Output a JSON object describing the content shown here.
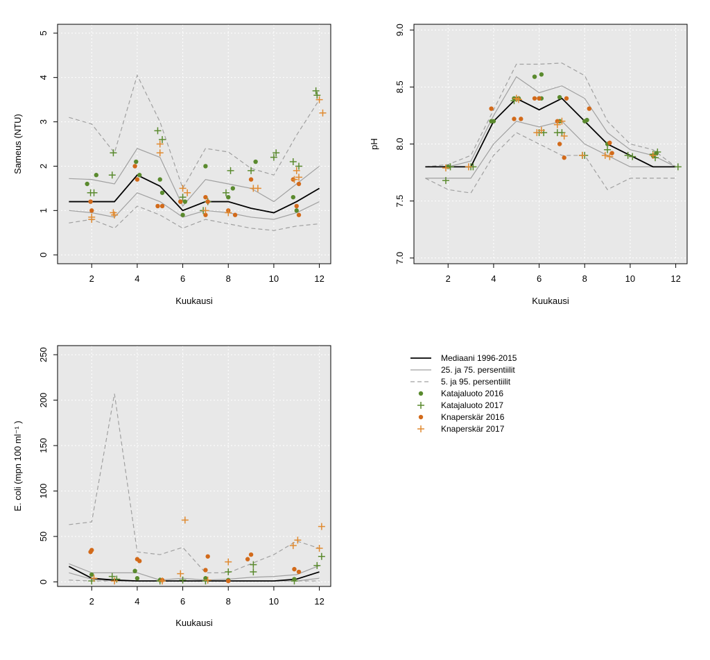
{
  "colors": {
    "panel_bg": "#e8e8e8",
    "grid": "#ffffff",
    "median": "#000000",
    "quartiles": "#a0a0a0",
    "percentiles_5_95": "#a0a0a0",
    "katajaluoto": "#5a8a2e",
    "knaperskar": "#d26a1a",
    "knaperskar_2017": "#e08a30"
  },
  "legend": {
    "items": [
      {
        "label": "Mediaani 1996-2015",
        "kind": "line",
        "style": "median"
      },
      {
        "label": "25. ja 75. persentiilit",
        "kind": "line",
        "style": "quartiles"
      },
      {
        "label": "5. ja 95. persentiilit",
        "kind": "line",
        "style": "percentiles"
      },
      {
        "label": "Katajaluoto 2016",
        "kind": "dot",
        "color": "#5a8a2e"
      },
      {
        "label": "Katajaluoto 2017",
        "kind": "plus",
        "color": "#5a8a2e"
      },
      {
        "label": "Knaperskär 2016",
        "kind": "dot",
        "color": "#d26a1a"
      },
      {
        "label": "Knaperskär 2017",
        "kind": "plus",
        "color": "#e08a30"
      }
    ]
  },
  "chart_data": [
    {
      "type": "line",
      "xlabel": "Kuukausi",
      "ylabel": "Sameus (NTU)",
      "xlim": [
        0.5,
        12.5
      ],
      "ylim": [
        -0.2,
        5.2
      ],
      "xticks": [
        2,
        4,
        6,
        8,
        10,
        12
      ],
      "yticks": [
        0,
        1,
        2,
        3,
        4,
        5
      ],
      "ytick_labels": [
        "0",
        "1",
        "2",
        "3",
        "4",
        "5"
      ],
      "grid": true,
      "x": [
        1,
        2,
        3,
        4,
        5,
        6,
        7,
        8,
        9,
        10,
        11,
        12
      ],
      "median": [
        1.2,
        1.2,
        1.2,
        1.8,
        1.55,
        1.0,
        1.2,
        1.2,
        1.05,
        0.95,
        1.2,
        1.5
      ],
      "p25": [
        1.0,
        0.95,
        0.85,
        1.4,
        1.2,
        0.85,
        1.0,
        0.95,
        0.85,
        0.8,
        0.95,
        1.2
      ],
      "p75": [
        1.72,
        1.7,
        1.6,
        2.4,
        2.2,
        1.1,
        1.7,
        1.6,
        1.5,
        1.2,
        1.6,
        2.0
      ],
      "p5": [
        0.72,
        0.8,
        0.6,
        1.1,
        0.9,
        0.6,
        0.8,
        0.7,
        0.6,
        0.55,
        0.65,
        0.7
      ],
      "p95": [
        3.1,
        2.95,
        2.3,
        4.05,
        3.0,
        1.5,
        2.4,
        2.32,
        1.95,
        1.8,
        2.7,
        3.5
      ],
      "points": {
        "katajaluoto_2016": [
          [
            1.8,
            1.6
          ],
          [
            2.2,
            1.8
          ],
          [
            3.95,
            2.1
          ],
          [
            4.1,
            1.8
          ],
          [
            5.0,
            1.7
          ],
          [
            5.1,
            1.4
          ],
          [
            5.9,
            1.2
          ],
          [
            6.0,
            0.9
          ],
          [
            6.1,
            1.2
          ],
          [
            7.0,
            2.0
          ],
          [
            8.0,
            1.3
          ],
          [
            8.2,
            1.5
          ],
          [
            9.2,
            2.1
          ],
          [
            10.85,
            1.3
          ],
          [
            11.0,
            1.0
          ]
        ],
        "katajaluoto_2017": [
          [
            1.95,
            1.4
          ],
          [
            2.1,
            1.4
          ],
          [
            2.9,
            1.8
          ],
          [
            2.95,
            2.3
          ],
          [
            4.9,
            2.8
          ],
          [
            5.1,
            2.6
          ],
          [
            6.0,
            1.3
          ],
          [
            6.9,
            1.0
          ],
          [
            7.1,
            1.2
          ],
          [
            7.9,
            1.4
          ],
          [
            8.1,
            1.9
          ],
          [
            9.0,
            1.9
          ],
          [
            10.0,
            2.2
          ],
          [
            10.1,
            2.3
          ],
          [
            10.85,
            2.1
          ],
          [
            11.1,
            2.0
          ],
          [
            11.85,
            3.7
          ],
          [
            11.9,
            3.6
          ]
        ],
        "knaperskar_2016": [
          [
            1.95,
            1.2
          ],
          [
            2.0,
            1.0
          ],
          [
            3.9,
            2.0
          ],
          [
            4.0,
            1.7
          ],
          [
            4.9,
            1.1
          ],
          [
            5.1,
            1.1
          ],
          [
            5.9,
            1.2
          ],
          [
            7.0,
            1.3
          ],
          [
            7.0,
            0.9
          ],
          [
            7.1,
            1.2
          ],
          [
            8.0,
            1.0
          ],
          [
            8.3,
            0.9
          ],
          [
            9.0,
            1.7
          ],
          [
            10.85,
            1.7
          ],
          [
            11.0,
            1.1
          ],
          [
            11.1,
            0.9
          ],
          [
            11.1,
            1.6
          ]
        ],
        "knaperskar_2017": [
          [
            2.0,
            0.8
          ],
          [
            2.0,
            0.85
          ],
          [
            2.95,
            0.95
          ],
          [
            3.0,
            0.9
          ],
          [
            5.0,
            2.5
          ],
          [
            5.0,
            2.3
          ],
          [
            6.0,
            1.5
          ],
          [
            6.2,
            1.4
          ],
          [
            7.0,
            1.0
          ],
          [
            8.0,
            0.95
          ],
          [
            9.1,
            1.5
          ],
          [
            9.3,
            1.5
          ],
          [
            10.9,
            1.7
          ],
          [
            11.0,
            1.9
          ],
          [
            11.1,
            1.75
          ],
          [
            12.0,
            3.5
          ],
          [
            12.15,
            3.2
          ]
        ]
      }
    },
    {
      "type": "line",
      "xlabel": "Kuukausi",
      "ylabel": "pH",
      "xlim": [
        0.5,
        12.5
      ],
      "ylim": [
        6.95,
        9.05
      ],
      "xticks": [
        2,
        4,
        6,
        8,
        10,
        12
      ],
      "yticks": [
        7.0,
        7.5,
        8.0,
        8.5,
        9.0
      ],
      "ytick_labels": [
        "7.0",
        "7.5",
        "8.0",
        "8.5",
        "9.0"
      ],
      "grid": true,
      "x": [
        1,
        2,
        3,
        4,
        5,
        6,
        7,
        8,
        9,
        10,
        11,
        12
      ],
      "median": [
        7.8,
        7.8,
        7.8,
        8.2,
        8.4,
        8.3,
        8.4,
        8.2,
        8.0,
        7.9,
        7.8,
        7.8
      ],
      "p25": [
        7.7,
        7.7,
        7.7,
        8.0,
        8.2,
        8.15,
        8.2,
        8.0,
        7.9,
        7.8,
        7.8,
        7.8
      ],
      "p75": [
        7.8,
        7.8,
        7.85,
        8.25,
        8.59,
        8.45,
        8.51,
        8.4,
        8.1,
        7.95,
        7.9,
        7.8
      ],
      "p5": [
        7.7,
        7.6,
        7.57,
        7.9,
        8.1,
        8.0,
        7.9,
        7.9,
        7.6,
        7.7,
        7.7,
        7.7
      ],
      "p95": [
        7.8,
        7.82,
        7.9,
        8.3,
        8.7,
        8.7,
        8.71,
        8.6,
        8.2,
        8.0,
        7.95,
        7.8
      ],
      "points": {
        "katajaluoto_2016": [
          [
            2.0,
            7.8
          ],
          [
            3.9,
            8.2
          ],
          [
            4.0,
            8.2
          ],
          [
            4.9,
            8.4
          ],
          [
            5.1,
            8.4
          ],
          [
            5.8,
            8.59
          ],
          [
            6.0,
            8.4
          ],
          [
            6.1,
            8.61
          ],
          [
            6.1,
            8.4
          ],
          [
            6.9,
            8.41
          ],
          [
            6.9,
            8.2
          ],
          [
            8.0,
            8.2
          ],
          [
            8.1,
            8.21
          ],
          [
            9.0,
            8.0
          ],
          [
            11.0,
            7.9
          ],
          [
            11.15,
            7.92
          ]
        ],
        "katajaluoto_2017": [
          [
            1.9,
            7.68
          ],
          [
            2.1,
            7.8
          ],
          [
            3.0,
            7.8
          ],
          [
            3.1,
            7.8
          ],
          [
            4.9,
            8.38
          ],
          [
            5.0,
            8.4
          ],
          [
            6.0,
            8.1
          ],
          [
            6.2,
            8.1
          ],
          [
            6.8,
            8.1
          ],
          [
            7.0,
            8.1
          ],
          [
            7.9,
            7.9
          ],
          [
            8.0,
            7.9
          ],
          [
            9.0,
            7.95
          ],
          [
            9.9,
            7.9
          ],
          [
            10.1,
            7.89
          ],
          [
            11.0,
            7.91
          ],
          [
            11.1,
            7.88
          ],
          [
            11.2,
            7.93
          ],
          [
            12.1,
            7.8
          ]
        ],
        "knaperskar_2016": [
          [
            3.9,
            8.31
          ],
          [
            4.9,
            8.22
          ],
          [
            5.2,
            8.22
          ],
          [
            5.8,
            8.4
          ],
          [
            6.0,
            8.4
          ],
          [
            6.8,
            8.2
          ],
          [
            6.9,
            8.0
          ],
          [
            7.1,
            7.88
          ],
          [
            7.2,
            8.4
          ],
          [
            8.2,
            8.31
          ],
          [
            9.1,
            8.01
          ],
          [
            9.2,
            7.92
          ]
        ],
        "knaperskar_2017": [
          [
            1.9,
            7.79
          ],
          [
            2.9,
            7.8
          ],
          [
            5.0,
            8.4
          ],
          [
            5.1,
            8.39
          ],
          [
            5.9,
            8.1
          ],
          [
            6.1,
            8.12
          ],
          [
            6.8,
            8.17
          ],
          [
            7.0,
            8.2
          ],
          [
            7.1,
            8.07
          ],
          [
            7.9,
            7.9
          ],
          [
            8.9,
            7.9
          ],
          [
            9.1,
            7.89
          ],
          [
            11.0,
            7.9
          ]
        ]
      }
    },
    {
      "type": "line",
      "xlabel": "Kuukausi",
      "ylabel": "E. coli (mpn 100 ml⁻¹ )",
      "xlim": [
        0.5,
        12.5
      ],
      "ylim": [
        -5,
        260
      ],
      "xticks": [
        2,
        4,
        6,
        8,
        10,
        12
      ],
      "yticks": [
        0,
        50,
        100,
        150,
        200,
        250
      ],
      "ytick_labels": [
        "0",
        "50",
        "100",
        "150",
        "200",
        "250"
      ],
      "grid": true,
      "x": [
        1,
        2,
        3,
        4,
        5,
        6,
        7,
        8,
        9,
        10,
        11,
        12
      ],
      "median": [
        17,
        4,
        2,
        1,
        1,
        1,
        1,
        1,
        1,
        1,
        3,
        11
      ],
      "p25": [
        10,
        3,
        1,
        1,
        1,
        1,
        1,
        1,
        1,
        1,
        1,
        4
      ],
      "p75": [
        20,
        10,
        10,
        10,
        2,
        4,
        2,
        3,
        5,
        6,
        8,
        18
      ],
      "p5": [
        2,
        1,
        1,
        1,
        1,
        1,
        1,
        1,
        1,
        1,
        1,
        1
      ],
      "p95": [
        63,
        66,
        207,
        33,
        30,
        38,
        10,
        10,
        20,
        30,
        45,
        37
      ],
      "points": {
        "katajaluoto_2016": [
          [
            2.0,
            8
          ],
          [
            3.9,
            12
          ],
          [
            4.0,
            4
          ],
          [
            5.0,
            2
          ],
          [
            7.0,
            4
          ],
          [
            8.0,
            2
          ],
          [
            10.9,
            3
          ]
        ],
        "katajaluoto_2017": [
          [
            2.0,
            1
          ],
          [
            2.9,
            6
          ],
          [
            3.1,
            3
          ],
          [
            5.0,
            1
          ],
          [
            6.0,
            2
          ],
          [
            7.0,
            1
          ],
          [
            8.0,
            11
          ],
          [
            9.1,
            19
          ],
          [
            9.1,
            11
          ],
          [
            10.9,
            1
          ],
          [
            11.9,
            18
          ],
          [
            12.1,
            28
          ]
        ],
        "knaperskar_2016": [
          [
            1.95,
            33
          ],
          [
            2.0,
            35
          ],
          [
            4.0,
            25
          ],
          [
            4.1,
            23
          ],
          [
            5.1,
            2
          ],
          [
            7.0,
            13
          ],
          [
            7.1,
            28
          ],
          [
            8.0,
            1
          ],
          [
            8.85,
            25
          ],
          [
            9.0,
            30
          ],
          [
            10.9,
            14
          ],
          [
            11.1,
            11
          ]
        ],
        "knaperskar_2017": [
          [
            2.1,
            4
          ],
          [
            3.0,
            1
          ],
          [
            5.1,
            1
          ],
          [
            5.9,
            9
          ],
          [
            6.1,
            68
          ],
          [
            7.1,
            2
          ],
          [
            8.0,
            22
          ],
          [
            10.85,
            40
          ],
          [
            11.05,
            46
          ],
          [
            12.0,
            37
          ],
          [
            12.1,
            61
          ]
        ]
      }
    }
  ]
}
